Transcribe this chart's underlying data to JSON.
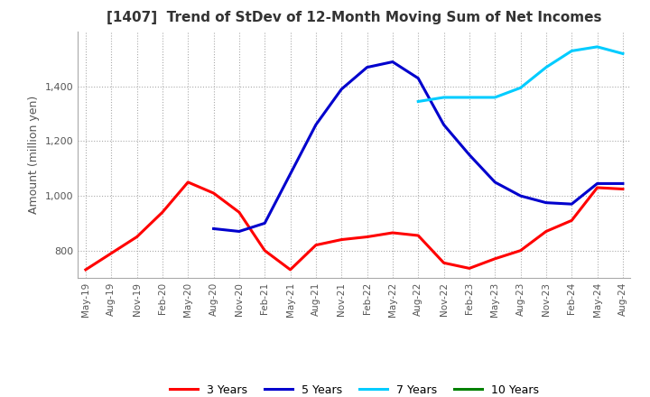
{
  "title": "[1407]  Trend of StDev of 12-Month Moving Sum of Net Incomes",
  "ylabel": "Amount (million yen)",
  "ylim": [
    700,
    1600
  ],
  "yticks": [
    800,
    1000,
    1200,
    1400
  ],
  "background_color": "#ffffff",
  "grid_color": "#aaaaaa",
  "legend_labels": [
    "3 Years",
    "5 Years",
    "7 Years",
    "10 Years"
  ],
  "legend_colors": [
    "#ff0000",
    "#0000cd",
    "#00ccff",
    "#008000"
  ],
  "x_labels": [
    "May-19",
    "Aug-19",
    "Nov-19",
    "Feb-20",
    "May-20",
    "Aug-20",
    "Nov-20",
    "Feb-21",
    "May-21",
    "Aug-21",
    "Nov-21",
    "Feb-22",
    "May-22",
    "Aug-22",
    "Nov-22",
    "Feb-23",
    "May-23",
    "Aug-23",
    "Nov-23",
    "Feb-24",
    "May-24",
    "Aug-24"
  ],
  "series_3y": [
    730,
    790,
    850,
    940,
    1050,
    1010,
    940,
    800,
    730,
    820,
    840,
    850,
    865,
    855,
    755,
    735,
    770,
    800,
    870,
    910,
    1030,
    1025
  ],
  "series_5y": [
    null,
    null,
    null,
    null,
    null,
    880,
    870,
    900,
    1080,
    1260,
    1390,
    1470,
    1490,
    1430,
    1260,
    1150,
    1050,
    1000,
    975,
    970,
    1045,
    1045
  ],
  "series_7y": [
    null,
    null,
    null,
    null,
    null,
    null,
    null,
    null,
    null,
    null,
    null,
    null,
    null,
    1345,
    1360,
    1360,
    1360,
    1395,
    1470,
    1530,
    1545,
    1520
  ],
  "series_10y": [
    null,
    null,
    null,
    null,
    null,
    null,
    null,
    null,
    null,
    null,
    null,
    null,
    null,
    null,
    null,
    null,
    null,
    null,
    null,
    null,
    null,
    null
  ]
}
